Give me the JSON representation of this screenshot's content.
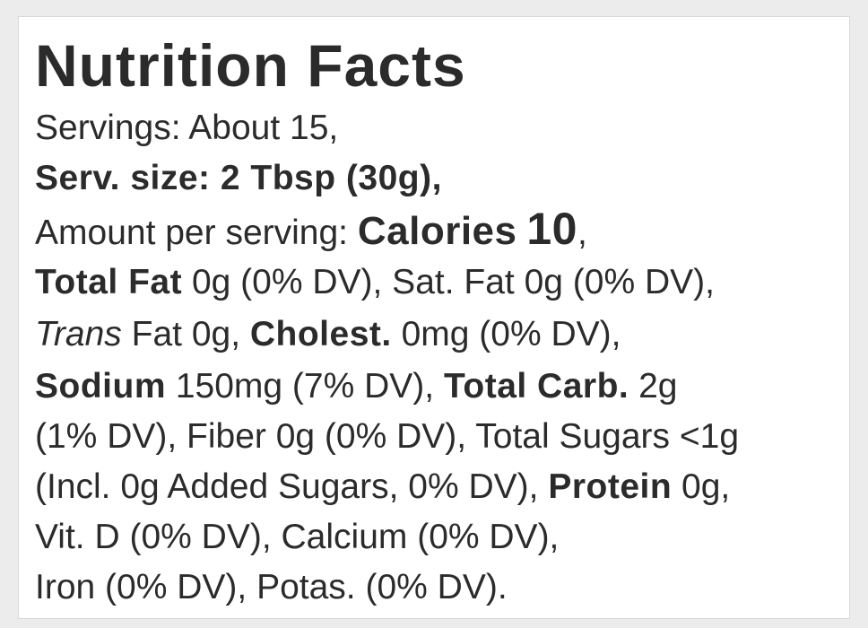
{
  "title": "Nutrition Facts",
  "lines": [
    [
      "Servings: About 15,"
    ],
    [
      "Serv. size: 2 Tbsp (30g),"
    ],
    [
      "Amount per serving: ",
      "Calories",
      "10",
      ","
    ],
    [
      "Total Fat",
      " 0g (0% DV), Sat. Fat 0g (0% DV),"
    ],
    [
      "Trans",
      " Fat 0g, ",
      "Cholest.",
      " 0mg (0% DV),"
    ],
    [
      "Sodium",
      " 150mg (7% DV), ",
      "Total Carb.",
      " 2g"
    ],
    [
      "(1% DV), Fiber 0g (0% DV), Total Sugars <1g"
    ],
    [
      "(Incl. 0g Added Sugars, 0% DV), ",
      "Protein",
      " 0g,"
    ],
    [
      "Vit. D (0% DV), Calcium (0% DV),"
    ],
    [
      "Iron (0% DV), Potas. (0% DV)."
    ]
  ]
}
